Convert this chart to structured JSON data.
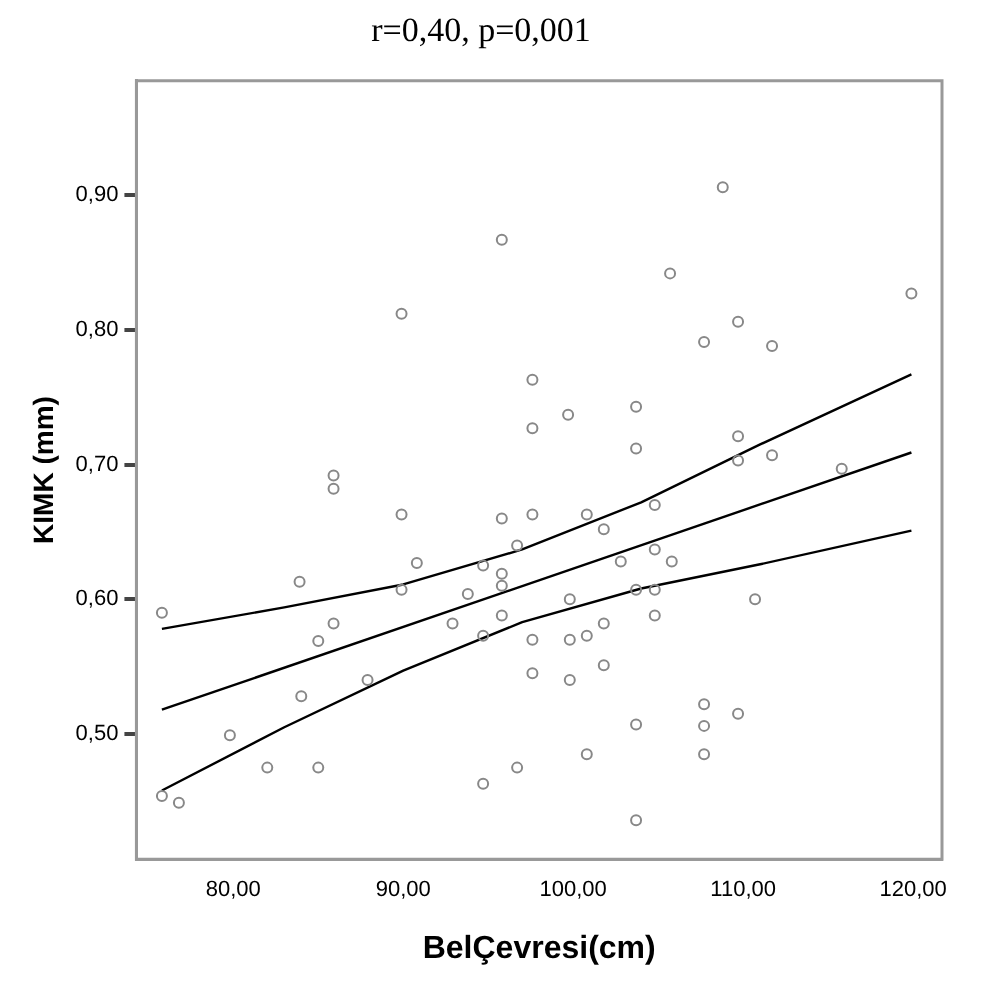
{
  "chart_data": {
    "type": "scatter",
    "title": "r=0,40, p=0,001",
    "xlabel": "BelÇevresi(cm)",
    "ylabel": "KIMK (mm)",
    "xlim": [
      74.3,
      121.7
    ],
    "ylim": [
      0.407,
      0.985
    ],
    "xticks": [
      {
        "value": 80,
        "label": "80,00"
      },
      {
        "value": 90,
        "label": "90,00"
      },
      {
        "value": 100,
        "label": "100,00"
      },
      {
        "value": 110,
        "label": "110,00"
      },
      {
        "value": 120,
        "label": "120,00"
      }
    ],
    "yticks": [
      {
        "value": 0.5,
        "label": "0,50"
      },
      {
        "value": 0.6,
        "label": "0,60"
      },
      {
        "value": 0.7,
        "label": "0,70"
      },
      {
        "value": 0.8,
        "label": "0,80"
      },
      {
        "value": 0.9,
        "label": "0,90"
      }
    ],
    "grid": false,
    "legend": false,
    "marker": "circle",
    "series": [
      {
        "color": "#888888",
        "x": [
          75.8,
          75.8,
          76.8,
          79.8,
          82.0,
          83.9,
          84.0,
          85.0,
          85.0,
          85.9,
          85.9,
          85.9,
          87.9,
          89.9,
          89.9,
          89.9,
          90.8,
          92.9,
          93.8,
          94.7,
          94.7,
          94.7,
          95.8,
          95.8,
          95.8,
          95.8,
          95.8,
          96.7,
          96.7,
          97.6,
          97.6,
          97.6,
          97.6,
          97.6,
          100.8,
          99.7,
          103.7,
          103.7,
          104.8,
          105.7,
          108.8,
          107.7,
          109.7,
          111.7,
          109.7,
          109.7,
          111.7,
          115.8,
          119.9,
          101.8,
          102.8,
          104.8,
          105.8,
          99.8,
          103.7,
          104.8,
          104.8,
          101.8,
          99.8,
          100.8,
          101.8,
          99.8,
          110.7,
          107.7,
          107.7,
          107.7,
          109.7,
          103.7,
          100.8,
          103.7
        ],
        "values": [
          0.59,
          0.454,
          0.449,
          0.499,
          0.475,
          0.613,
          0.528,
          0.569,
          0.475,
          0.582,
          0.682,
          0.692,
          0.54,
          0.812,
          0.663,
          0.607,
          0.627,
          0.582,
          0.604,
          0.573,
          0.625,
          0.463,
          0.867,
          0.66,
          0.588,
          0.619,
          0.61,
          0.64,
          0.475,
          0.763,
          0.727,
          0.663,
          0.57,
          0.545,
          0.663,
          0.737,
          0.743,
          0.712,
          0.67,
          0.842,
          0.906,
          0.791,
          0.806,
          0.788,
          0.721,
          0.703,
          0.707,
          0.697,
          0.827,
          0.652,
          0.628,
          0.637,
          0.628,
          0.6,
          0.607,
          0.607,
          0.588,
          0.582,
          0.57,
          0.573,
          0.551,
          0.54,
          0.6,
          0.522,
          0.506,
          0.485,
          0.515,
          0.507,
          0.485,
          0.436
        ]
      },
      {
        "type": "line",
        "color": "#000000",
        "marker": "none",
        "x": [
          75.8,
          83,
          90,
          97,
          104,
          111,
          119.9
        ],
        "values": [
          0.578,
          0.594,
          0.611,
          0.637,
          0.672,
          0.715,
          0.767
        ]
      },
      {
        "type": "line",
        "color": "#000000",
        "marker": "none",
        "x": [
          75.8,
          119.9
        ],
        "values": [
          0.518,
          0.709
        ]
      },
      {
        "type": "line",
        "color": "#000000",
        "marker": "none",
        "x": [
          75.8,
          83,
          90,
          97,
          104,
          111,
          119.9
        ],
        "values": [
          0.458,
          0.505,
          0.547,
          0.583,
          0.608,
          0.626,
          0.651
        ]
      }
    ]
  }
}
